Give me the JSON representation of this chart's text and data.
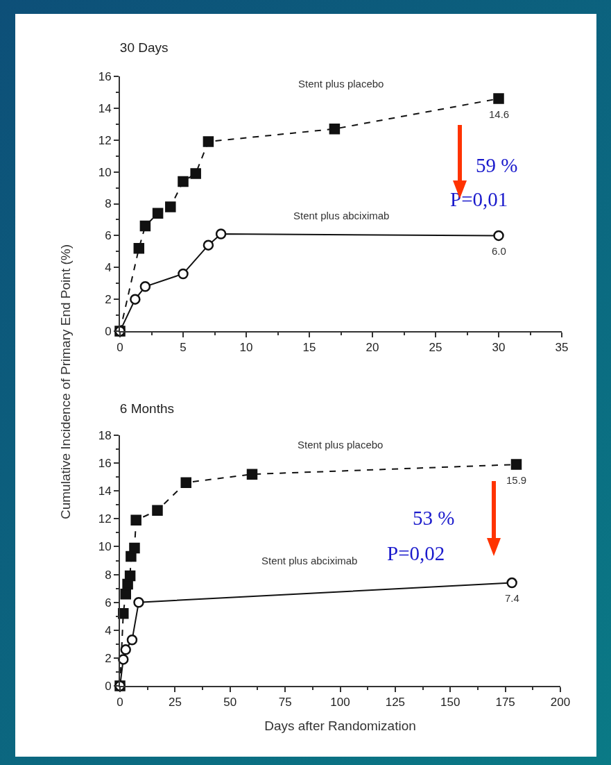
{
  "chart_data": [
    {
      "type": "line",
      "title": "30 Days",
      "ylabel": "Cumulative Incidence of Primary End Point (%)",
      "xlim": [
        0,
        35
      ],
      "xticks": [
        0,
        5,
        10,
        15,
        20,
        25,
        30,
        35
      ],
      "ylim": [
        0,
        16
      ],
      "yticks": [
        0,
        2,
        4,
        6,
        8,
        10,
        12,
        14,
        16
      ],
      "grid": false,
      "legend": false,
      "series": [
        {
          "name": "Stent plus placebo",
          "color": "#111111",
          "marker": "square",
          "line_style": "dashed",
          "x": [
            0,
            1.5,
            2,
            3,
            4,
            5,
            6,
            7,
            17,
            30
          ],
          "values": [
            0,
            5.2,
            6.6,
            7.4,
            7.8,
            9.4,
            9.9,
            11.9,
            12.7,
            14.6
          ],
          "value_labels": [
            null,
            null,
            null,
            null,
            null,
            null,
            null,
            null,
            null,
            "14.6"
          ]
        },
        {
          "name": "Stent plus abciximab",
          "color": "#111111",
          "marker": "circle",
          "line_style": "solid",
          "x": [
            0,
            1.2,
            2,
            5,
            7,
            8,
            30
          ],
          "values": [
            0,
            2.0,
            2.8,
            3.6,
            5.4,
            6.1,
            6.0
          ],
          "value_labels": [
            null,
            null,
            null,
            null,
            null,
            null,
            "6.0"
          ]
        }
      ],
      "annotations": [
        "59 %",
        "P=0,01"
      ]
    },
    {
      "type": "line",
      "title": "6 Months",
      "xlabel": "Days after Randomization",
      "xlim": [
        0,
        200
      ],
      "xticks": [
        0,
        25,
        50,
        75,
        100,
        125,
        150,
        175,
        200
      ],
      "ylim": [
        0,
        18
      ],
      "yticks": [
        0,
        2,
        4,
        6,
        8,
        10,
        12,
        14,
        16,
        18
      ],
      "grid": false,
      "legend": false,
      "series": [
        {
          "name": "Stent plus placebo",
          "color": "#111111",
          "marker": "square",
          "line_style": "dashed",
          "x": [
            0,
            1.5,
            2.6,
            3.5,
            4.6,
            5,
            6.6,
            7.3,
            17,
            30,
            60,
            180
          ],
          "values": [
            0,
            5.2,
            6.6,
            7.3,
            7.9,
            9.3,
            9.9,
            11.9,
            12.6,
            14.6,
            15.2,
            15.9
          ],
          "value_labels": [
            null,
            null,
            null,
            null,
            null,
            null,
            null,
            null,
            null,
            null,
            null,
            "15.9"
          ]
        },
        {
          "name": "Stent plus abciximab",
          "color": "#111111",
          "marker": "circle",
          "line_style": "solid",
          "x": [
            0,
            1.5,
            2.6,
            5.5,
            8.5,
            178
          ],
          "values": [
            0,
            1.9,
            2.6,
            3.3,
            6.0,
            7.4
          ],
          "value_labels": [
            null,
            null,
            null,
            null,
            null,
            "7.4"
          ]
        }
      ],
      "annotations": [
        "53 %",
        "P=0,02"
      ]
    }
  ]
}
